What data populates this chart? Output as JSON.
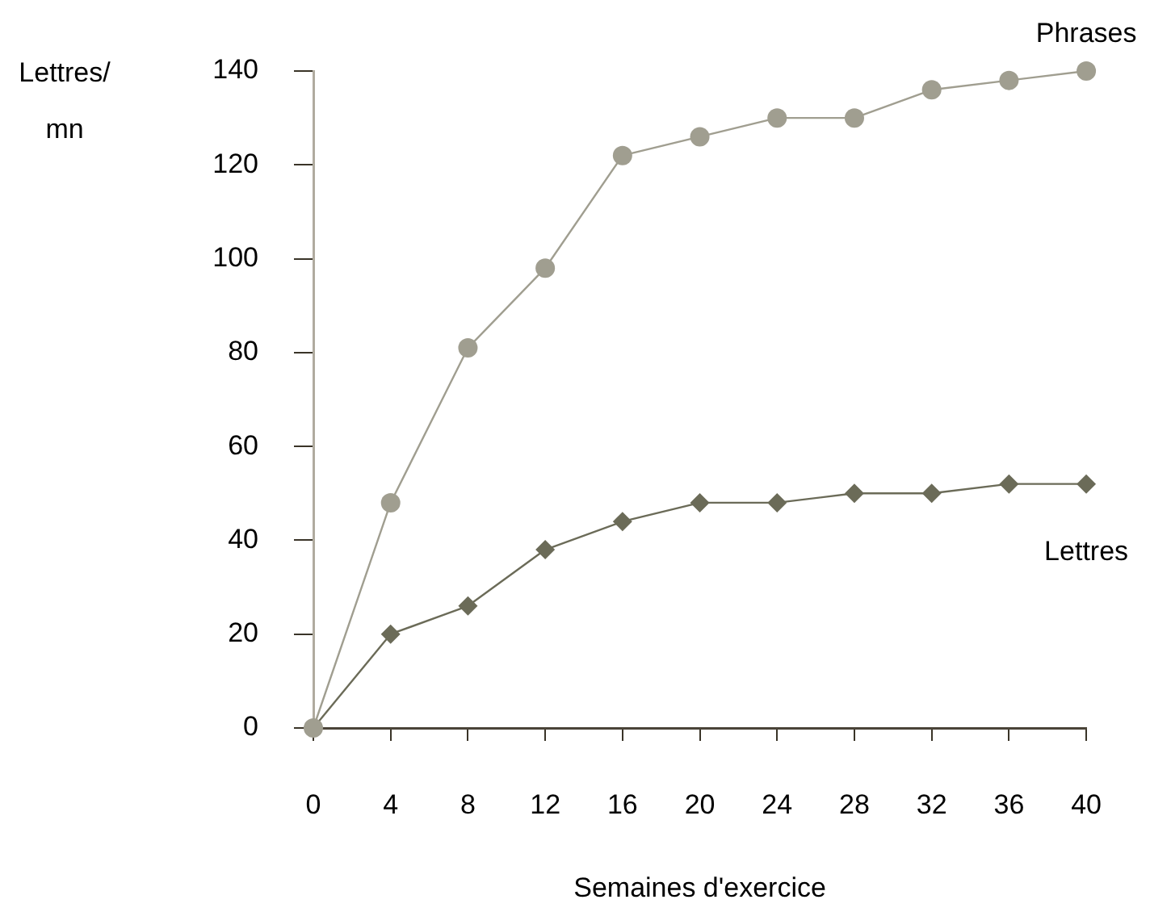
{
  "chart_data": {
    "type": "line",
    "xlabel": "Semaines d'exercice",
    "ylabel": "Lettres/\nmn",
    "x": [
      0,
      4,
      8,
      12,
      16,
      20,
      24,
      28,
      32,
      36,
      40
    ],
    "series": [
      {
        "name": "Phrases",
        "color": "#a09e90",
        "marker": "circle",
        "values": [
          0,
          48,
          81,
          98,
          122,
          126,
          130,
          130,
          136,
          138,
          140
        ]
      },
      {
        "name": "Lettres",
        "color": "#6b6b58",
        "marker": "diamond",
        "values": [
          0,
          20,
          26,
          38,
          44,
          48,
          48,
          50,
          50,
          52,
          52
        ]
      }
    ],
    "xlim": [
      0,
      40
    ],
    "xticks": [
      0,
      4,
      8,
      12,
      16,
      20,
      24,
      28,
      32,
      36,
      40
    ],
    "ylim": [
      0,
      140
    ],
    "yticks": [
      0,
      20,
      40,
      60,
      80,
      100,
      120,
      140
    ],
    "grid": false,
    "legend": false,
    "line_style": "solid"
  }
}
